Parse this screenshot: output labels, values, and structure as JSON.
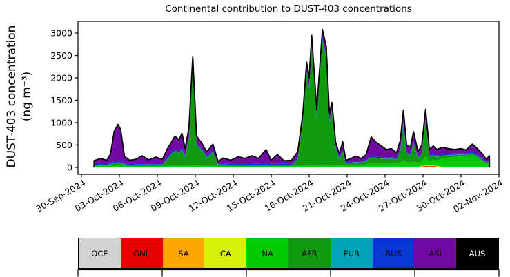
{
  "title": "Continental contribution to DUST-403 concentrations",
  "y_axis_label_line1": "DUST-403 concentration",
  "y_axis_label_line2": "(ng m⁻³)",
  "chart_data": {
    "type": "area",
    "stacked": true,
    "title": "Continental contribution to DUST-403 concentrations",
    "ylabel": "DUST-403 concentration (ng m-3)",
    "xlabel": "",
    "x_unit": "days since 30-Sep-2024 00:00",
    "xlim": [
      -0.27,
      33
    ],
    "ylim": [
      -154,
      3261
    ],
    "grid": false,
    "outline_color": "#000000",
    "background": "#ffffff",
    "x_ticks": [
      0,
      3,
      6,
      9,
      12,
      15,
      18,
      21,
      24,
      27,
      30,
      33
    ],
    "x_ticklabels": [
      "30-Sep-2024",
      "03-Oct-2024",
      "06-Oct-2024",
      "09-Oct-2024",
      "12-Oct-2024",
      "15-Oct-2024",
      "18-Oct-2024",
      "21-Oct-2024",
      "24-Oct-2024",
      "27-Oct-2024",
      "30-Oct-2024",
      "02-Nov-2024"
    ],
    "y_ticks": [
      0,
      500,
      1000,
      1500,
      2000,
      2500,
      3000
    ],
    "y_ticklabels": [
      "0",
      "500",
      "1000",
      "1500",
      "2000",
      "2500",
      "3000"
    ],
    "x": [
      1.0,
      1.5,
      2.0,
      2.3,
      2.6,
      2.9,
      3.1,
      3.4,
      3.8,
      4.3,
      4.8,
      5.3,
      5.9,
      6.4,
      6.8,
      7.1,
      7.4,
      7.7,
      7.95,
      8.2,
      8.5,
      8.8,
      9.1,
      9.5,
      9.9,
      10.4,
      10.8,
      11.2,
      11.8,
      12.4,
      12.9,
      13.5,
      14.0,
      14.6,
      15.0,
      15.5,
      16.0,
      16.6,
      17.1,
      17.5,
      17.8,
      18.0,
      18.2,
      18.6,
      19.05,
      19.35,
      19.6,
      19.8,
      20.1,
      20.4,
      20.65,
      20.9,
      21.3,
      21.7,
      22.1,
      22.5,
      22.9,
      23.3,
      23.7,
      24.1,
      24.5,
      24.9,
      25.2,
      25.45,
      25.7,
      26.0,
      26.25,
      26.6,
      26.9,
      27.2,
      27.5,
      27.8,
      28.1,
      28.5,
      29.0,
      29.5,
      30.0,
      30.4,
      30.9,
      31.3,
      31.7,
      32.0,
      32.25
    ],
    "series": [
      {
        "name": "OCE",
        "color": "#d3d3d3",
        "values": [
          0,
          0,
          0,
          0,
          0,
          0,
          0,
          0,
          0,
          0,
          0,
          0,
          0,
          0,
          0,
          0,
          0,
          0,
          0,
          0,
          0,
          0,
          0,
          0,
          0,
          0,
          0,
          0,
          0,
          0,
          0,
          0,
          0,
          0,
          0,
          0,
          0,
          0,
          0,
          0,
          0,
          0,
          0,
          0,
          0,
          0,
          0,
          0,
          0,
          0,
          0,
          0,
          0,
          0,
          0,
          0,
          0,
          0,
          0,
          0,
          0,
          0,
          0,
          0,
          0,
          0,
          0,
          0,
          0,
          0,
          0,
          0,
          0,
          0,
          0,
          0,
          0,
          0,
          0,
          0,
          0,
          0,
          0
        ]
      },
      {
        "name": "GNL",
        "color": "#e60000",
        "values": [
          0,
          0,
          0,
          0,
          0,
          0,
          0,
          0,
          0,
          0,
          0,
          0,
          0,
          0,
          0,
          0,
          0,
          0,
          0,
          0,
          0,
          0,
          0,
          0,
          0,
          0,
          0,
          0,
          0,
          0,
          0,
          0,
          0,
          0,
          0,
          0,
          0,
          0,
          0,
          0,
          0,
          0,
          0,
          0,
          0,
          0,
          0,
          0,
          0,
          0,
          0,
          0,
          0,
          0,
          0,
          0,
          0,
          0,
          0,
          0,
          0,
          0,
          0,
          0,
          0,
          0,
          0,
          0,
          20,
          30,
          25,
          30,
          20,
          0,
          0,
          0,
          0,
          0,
          0,
          0,
          0,
          0,
          0
        ]
      },
      {
        "name": "SA",
        "color": "#ffa500",
        "values": [
          0,
          0,
          0,
          0,
          0,
          0,
          0,
          0,
          0,
          0,
          0,
          0,
          0,
          0,
          0,
          0,
          0,
          0,
          0,
          0,
          0,
          0,
          0,
          0,
          0,
          0,
          0,
          0,
          0,
          0,
          0,
          0,
          0,
          0,
          0,
          0,
          0,
          0,
          0,
          0,
          0,
          0,
          0,
          0,
          0,
          0,
          0,
          0,
          0,
          0,
          0,
          0,
          0,
          0,
          0,
          0,
          0,
          0,
          0,
          0,
          0,
          0,
          0,
          0,
          0,
          0,
          0,
          0,
          0,
          0,
          0,
          0,
          0,
          0,
          0,
          0,
          0,
          0,
          0,
          0,
          0,
          0,
          0
        ]
      },
      {
        "name": "CA",
        "color": "#d6ef0b",
        "values": [
          15,
          15,
          15,
          15,
          15,
          15,
          15,
          15,
          15,
          15,
          15,
          15,
          15,
          15,
          15,
          15,
          15,
          15,
          15,
          15,
          15,
          15,
          15,
          15,
          15,
          15,
          15,
          15,
          15,
          15,
          15,
          15,
          15,
          15,
          15,
          15,
          15,
          15,
          15,
          15,
          15,
          15,
          15,
          15,
          15,
          15,
          15,
          15,
          15,
          15,
          15,
          15,
          15,
          15,
          15,
          15,
          15,
          15,
          15,
          15,
          15,
          15,
          15,
          15,
          15,
          15,
          15,
          15,
          15,
          15,
          15,
          15,
          15,
          15,
          15,
          15,
          15,
          15,
          15,
          15,
          15,
          15,
          15
        ]
      },
      {
        "name": "NA",
        "color": "#00ca00",
        "values": [
          20,
          20,
          20,
          20,
          25,
          25,
          25,
          20,
          15,
          15,
          15,
          15,
          15,
          15,
          20,
          25,
          25,
          25,
          25,
          20,
          30,
          40,
          30,
          25,
          20,
          25,
          15,
          15,
          15,
          15,
          15,
          15,
          15,
          15,
          15,
          15,
          15,
          15,
          20,
          30,
          40,
          40,
          40,
          35,
          45,
          40,
          35,
          35,
          30,
          25,
          30,
          20,
          25,
          30,
          30,
          50,
          80,
          80,
          80,
          80,
          90,
          80,
          100,
          150,
          100,
          100,
          120,
          90,
          100,
          200,
          100,
          120,
          120,
          180,
          200,
          220,
          230,
          220,
          260,
          200,
          120,
          70,
          90
        ]
      },
      {
        "name": "AFR",
        "color": "#109a10",
        "values": [
          15,
          20,
          15,
          30,
          60,
          70,
          60,
          30,
          20,
          25,
          30,
          25,
          30,
          30,
          150,
          250,
          320,
          280,
          350,
          200,
          600,
          2150,
          450,
          350,
          180,
          300,
          30,
          30,
          20,
          20,
          20,
          20,
          20,
          25,
          15,
          20,
          15,
          15,
          150,
          950,
          2050,
          1700,
          2650,
          1050,
          2780,
          2420,
          960,
          1200,
          380,
          150,
          300,
          50,
          60,
          70,
          60,
          80,
          120,
          110,
          100,
          90,
          90,
          80,
          250,
          800,
          200,
          150,
          400,
          100,
          150,
          800,
          100,
          100,
          80,
          60,
          50,
          40,
          40,
          35,
          40,
          35,
          30,
          20,
          25
        ]
      },
      {
        "name": "EUR",
        "color": "#00a3ba",
        "values": [
          8,
          8,
          8,
          8,
          8,
          8,
          8,
          8,
          8,
          8,
          8,
          8,
          8,
          8,
          8,
          8,
          8,
          8,
          8,
          8,
          8,
          8,
          8,
          8,
          8,
          8,
          8,
          8,
          8,
          8,
          8,
          8,
          8,
          8,
          8,
          8,
          8,
          8,
          8,
          8,
          8,
          8,
          8,
          8,
          8,
          8,
          8,
          8,
          8,
          8,
          8,
          8,
          8,
          8,
          8,
          8,
          8,
          8,
          8,
          8,
          8,
          8,
          8,
          8,
          8,
          8,
          8,
          8,
          8,
          8,
          8,
          8,
          8,
          8,
          8,
          8,
          8,
          8,
          8,
          8,
          8,
          8,
          8
        ]
      },
      {
        "name": "RUS",
        "color": "#0a36d6",
        "values": [
          45,
          50,
          35,
          40,
          40,
          40,
          40,
          30,
          25,
          25,
          30,
          25,
          30,
          25,
          30,
          30,
          30,
          30,
          30,
          25,
          30,
          40,
          25,
          25,
          25,
          25,
          20,
          25,
          25,
          50,
          35,
          35,
          30,
          35,
          25,
          30,
          25,
          25,
          25,
          30,
          40,
          40,
          40,
          35,
          40,
          40,
          30,
          30,
          25,
          25,
          30,
          20,
          20,
          20,
          20,
          25,
          30,
          30,
          30,
          25,
          25,
          25,
          25,
          30,
          25,
          25,
          30,
          25,
          25,
          30,
          25,
          30,
          30,
          35,
          35,
          30,
          30,
          30,
          35,
          30,
          25,
          20,
          25
        ]
      },
      {
        "name": "ASI",
        "color": "#7309a5",
        "values": [
          47,
          87,
          67,
          187,
          672,
          802,
          702,
          147,
          77,
          92,
          162,
          82,
          132,
          87,
          197,
          232,
          302,
          262,
          332,
          152,
          217,
          227,
          172,
          127,
          102,
          147,
          42,
          117,
          77,
          132,
          107,
          167,
          112,
          302,
          82,
          202,
          72,
          82,
          132,
          167,
          197,
          197,
          197,
          157,
          192,
          177,
          152,
          162,
          92,
          77,
          197,
          47,
          72,
          107,
          67,
          102,
          427,
          317,
          247,
          182,
          192,
          122,
          202,
          277,
          152,
          152,
          227,
          112,
          182,
          217,
          127,
          177,
          127,
          152,
          112,
          87,
          97,
          82,
          162,
          132,
          102,
          47,
          97
        ]
      },
      {
        "name": "AUS",
        "color": "#000000",
        "values": [
          0,
          0,
          0,
          0,
          0,
          0,
          0,
          0,
          0,
          0,
          0,
          0,
          0,
          0,
          0,
          0,
          0,
          0,
          0,
          0,
          0,
          0,
          0,
          0,
          0,
          0,
          0,
          0,
          0,
          0,
          0,
          0,
          0,
          0,
          0,
          0,
          0,
          0,
          0,
          0,
          0,
          0,
          0,
          0,
          0,
          0,
          0,
          0,
          0,
          0,
          0,
          0,
          0,
          0,
          0,
          0,
          0,
          0,
          0,
          0,
          0,
          0,
          0,
          0,
          0,
          0,
          0,
          0,
          0,
          0,
          0,
          0,
          0,
          0,
          0,
          0,
          0,
          0,
          0,
          0,
          0,
          0,
          0
        ]
      }
    ],
    "legend": {
      "position": "bottom",
      "entries": [
        {
          "label": "OCE",
          "color": "#d3d3d3",
          "text_color": "#000000"
        },
        {
          "label": "GNL",
          "color": "#e60000",
          "text_color": "#000000"
        },
        {
          "label": "SA",
          "color": "#ffa500",
          "text_color": "#000000"
        },
        {
          "label": "CA",
          "color": "#d6ef0b",
          "text_color": "#000000"
        },
        {
          "label": "NA",
          "color": "#00ca00",
          "text_color": "#000000"
        },
        {
          "label": "AFR",
          "color": "#109a10",
          "text_color": "#000000"
        },
        {
          "label": "EUR",
          "color": "#00a3ba",
          "text_color": "#000000"
        },
        {
          "label": "RUS",
          "color": "#0a36d6",
          "text_color": "#000000"
        },
        {
          "label": "ASI",
          "color": "#7309a5",
          "text_color": "#000000"
        },
        {
          "label": "AUS",
          "color": "#000000",
          "text_color": "#ffffff"
        }
      ]
    }
  }
}
